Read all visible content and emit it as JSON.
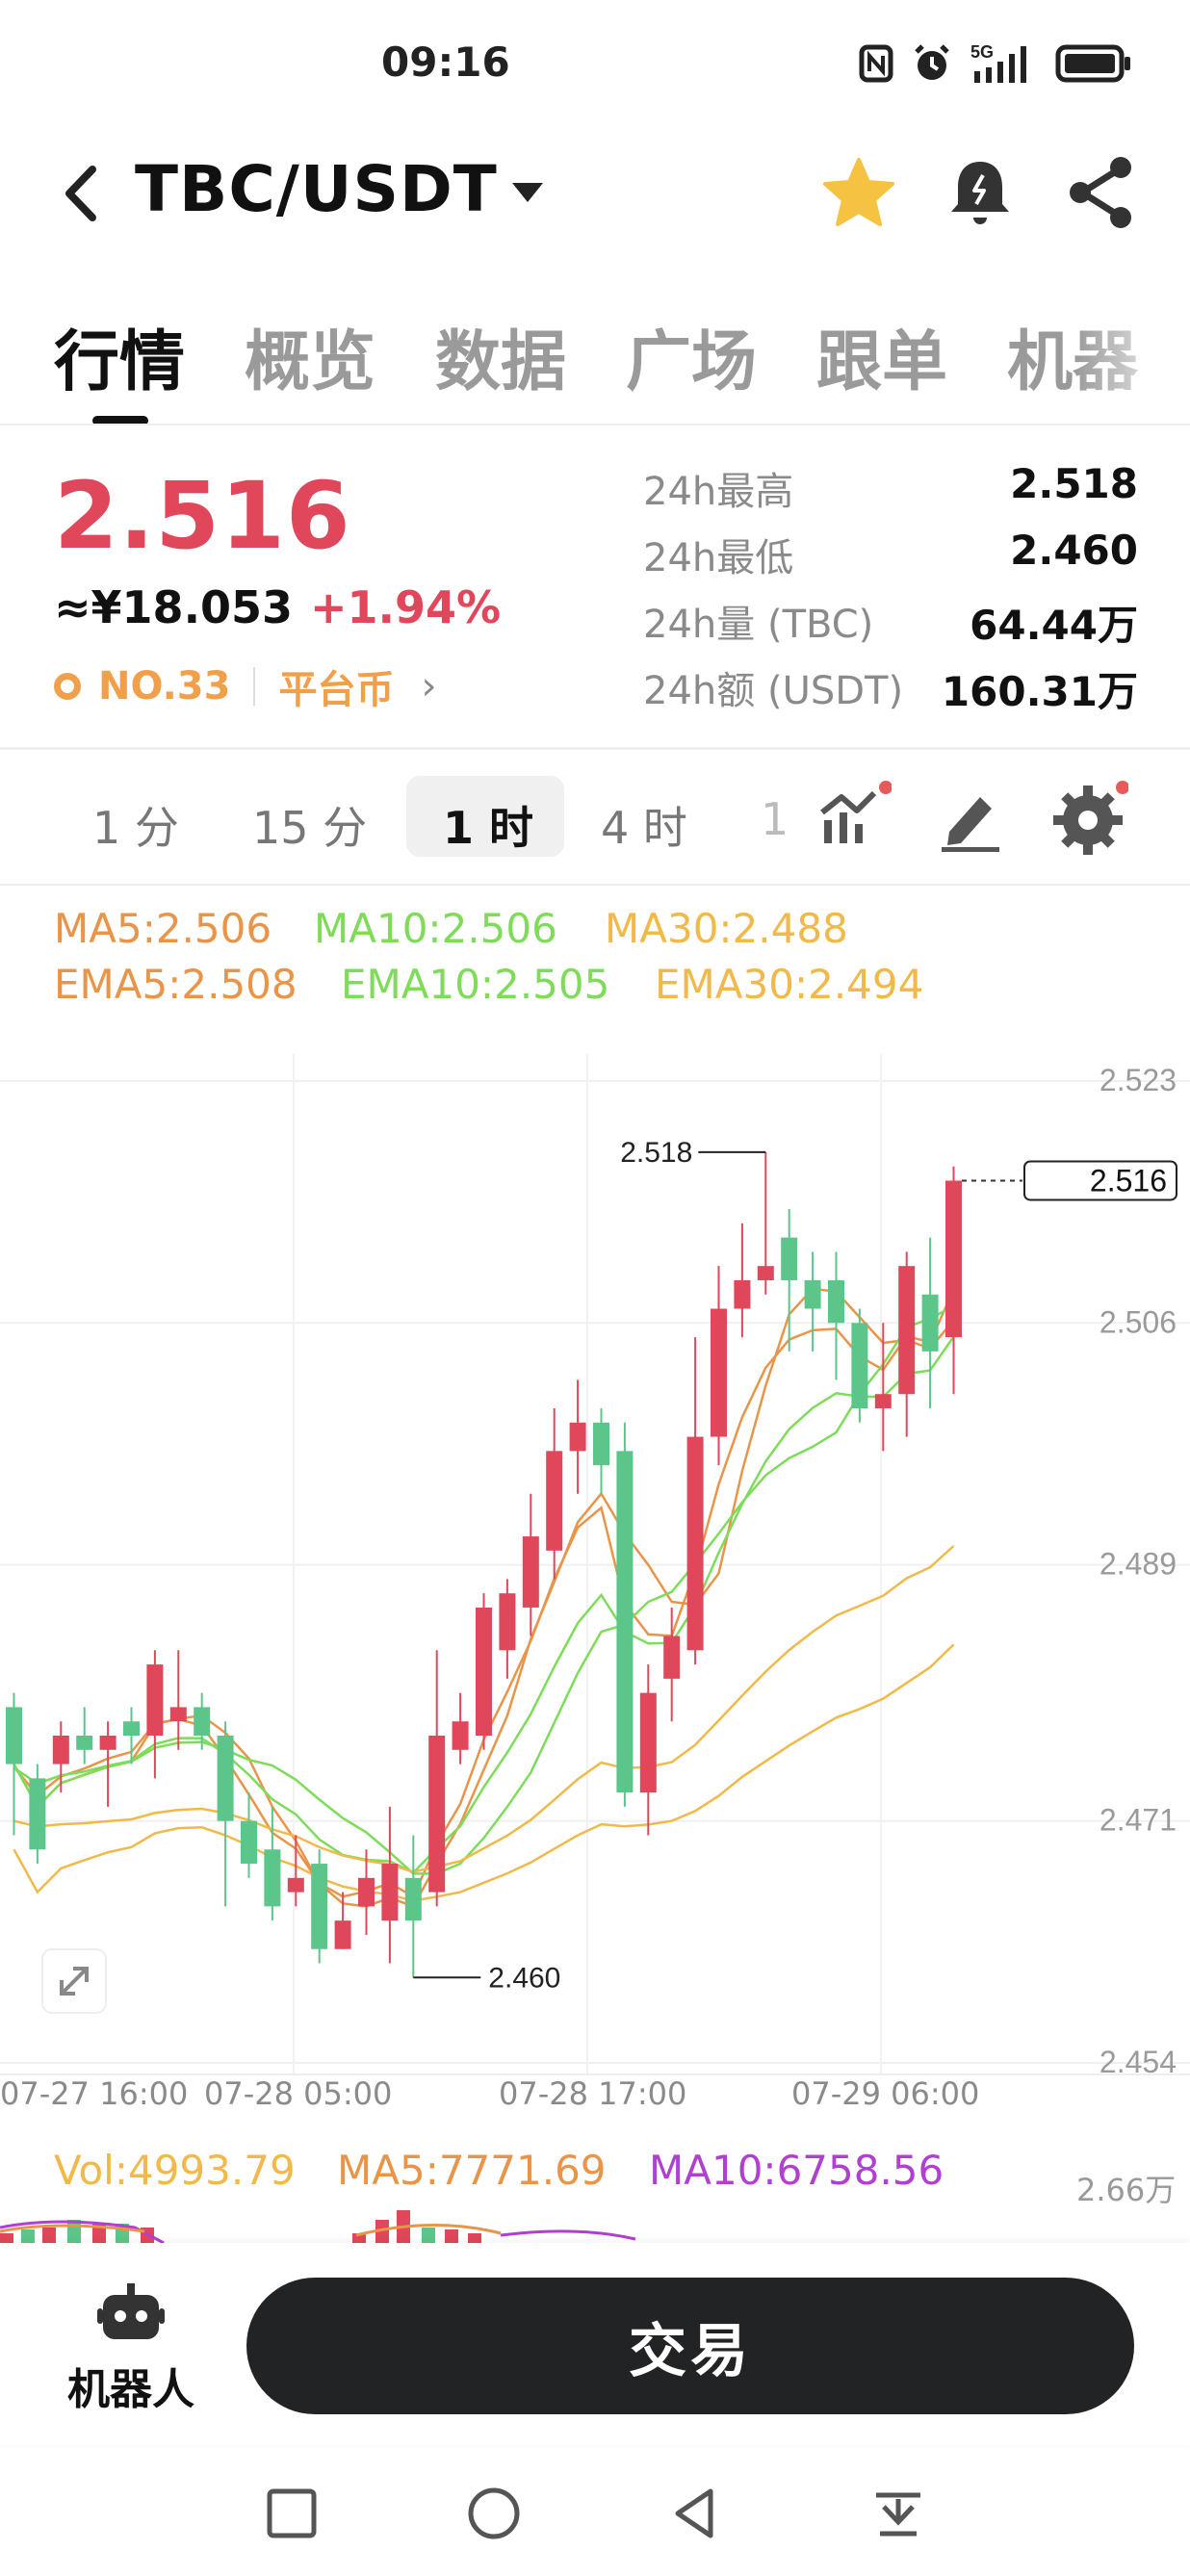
{
  "status_bar": {
    "time": "09:16",
    "network": "5G"
  },
  "header": {
    "pair": "TBC/USDT"
  },
  "tabs": [
    "行情",
    "概览",
    "数据",
    "广场",
    "跟单",
    "机器"
  ],
  "price": {
    "last": "2.516",
    "cny": "≈¥18.053",
    "change": "+1.94%",
    "rank": "NO.33",
    "category": "平台币"
  },
  "stats": [
    {
      "label": "24h最高",
      "value": "2.518"
    },
    {
      "label": "24h最低",
      "value": "2.460"
    },
    {
      "label": "24h量 (TBC)",
      "value": "64.44万"
    },
    {
      "label": "24h额 (USDT)",
      "value": "160.31万"
    }
  ],
  "intervals": [
    "1 分",
    "15 分",
    "1 时",
    "4 时",
    "1"
  ],
  "active_interval": "1 时",
  "ma_legend": {
    "ma5": "MA5:2.506",
    "ma10": "MA10:2.506",
    "ma30": "MA30:2.488",
    "ema5": "EMA5:2.508",
    "ema10": "EMA10:2.505",
    "ema30": "EMA30:2.494"
  },
  "volume_legend": {
    "vol": "Vol:4993.79",
    "ma5": "MA5:7771.69",
    "ma10": "MA10:6758.56",
    "axis": "2.66万"
  },
  "colors": {
    "up": "#e0475a",
    "down": "#5cc68a",
    "ma5": "#e8954a",
    "ma10": "#7fdc5a",
    "ma30": "#f0b94a",
    "ma10_vol": "#b040d0",
    "accent_star": "#f5c242"
  },
  "chart_data": {
    "type": "candlestick",
    "y_ticks": [
      "2.523",
      "2.506",
      "2.489",
      "2.471",
      "2.454"
    ],
    "ylim": [
      2.454,
      2.523
    ],
    "x_ticks": [
      "07-27 16:00",
      "07-28 05:00",
      "07-28 17:00",
      "07-29 06:00"
    ],
    "last_price_label": "2.516",
    "high_marker": "2.518",
    "low_marker": "2.460",
    "candles": [
      [
        2.479,
        2.475,
        2.48,
        2.47
      ],
      [
        2.474,
        2.469,
        2.475,
        2.468
      ],
      [
        2.475,
        2.477,
        2.478,
        2.473
      ],
      [
        2.477,
        2.476,
        2.479,
        2.475
      ],
      [
        2.476,
        2.477,
        2.478,
        2.472
      ],
      [
        2.478,
        2.477,
        2.479,
        2.475
      ],
      [
        2.477,
        2.482,
        2.483,
        2.474
      ],
      [
        2.478,
        2.479,
        2.483,
        2.476
      ],
      [
        2.479,
        2.477,
        2.48,
        2.476
      ],
      [
        2.477,
        2.471,
        2.478,
        2.465
      ],
      [
        2.471,
        2.468,
        2.473,
        2.467
      ],
      [
        2.469,
        2.465,
        2.472,
        2.464
      ],
      [
        2.466,
        2.467,
        2.47,
        2.465
      ],
      [
        2.468,
        2.462,
        2.469,
        2.461
      ],
      [
        2.462,
        2.464,
        2.466,
        2.462
      ],
      [
        2.465,
        2.467,
        2.469,
        2.463
      ],
      [
        2.464,
        2.468,
        2.472,
        2.461
      ],
      [
        2.467,
        2.464,
        2.47,
        2.46
      ],
      [
        2.466,
        2.477,
        2.483,
        2.465
      ],
      [
        2.476,
        2.478,
        2.48,
        2.475
      ],
      [
        2.477,
        2.486,
        2.487,
        2.476
      ],
      [
        2.483,
        2.487,
        2.488,
        2.481
      ],
      [
        2.486,
        2.491,
        2.494,
        2.484
      ],
      [
        2.49,
        2.497,
        2.5,
        2.488
      ],
      [
        2.497,
        2.499,
        2.502,
        2.494
      ],
      [
        2.499,
        2.496,
        2.5,
        2.494
      ],
      [
        2.497,
        2.473,
        2.499,
        2.472
      ],
      [
        2.473,
        2.48,
        2.482,
        2.47
      ],
      [
        2.481,
        2.484,
        2.486,
        2.478
      ],
      [
        2.483,
        2.498,
        2.505,
        2.482
      ],
      [
        2.498,
        2.507,
        2.51,
        2.496
      ],
      [
        2.507,
        2.509,
        2.513,
        2.505
      ],
      [
        2.509,
        2.51,
        2.518,
        2.508
      ],
      [
        2.512,
        2.509,
        2.514,
        2.504
      ],
      [
        2.509,
        2.507,
        2.511,
        2.504
      ],
      [
        2.509,
        2.506,
        2.511,
        2.502
      ],
      [
        2.506,
        2.5,
        2.507,
        2.499
      ],
      [
        2.5,
        2.501,
        2.506,
        2.497
      ],
      [
        2.501,
        2.51,
        2.511,
        2.498
      ],
      [
        2.508,
        2.504,
        2.512,
        2.5
      ],
      [
        2.505,
        2.516,
        2.517,
        2.501
      ]
    ],
    "candle_fields": [
      "open",
      "close",
      "high",
      "low"
    ]
  }
}
